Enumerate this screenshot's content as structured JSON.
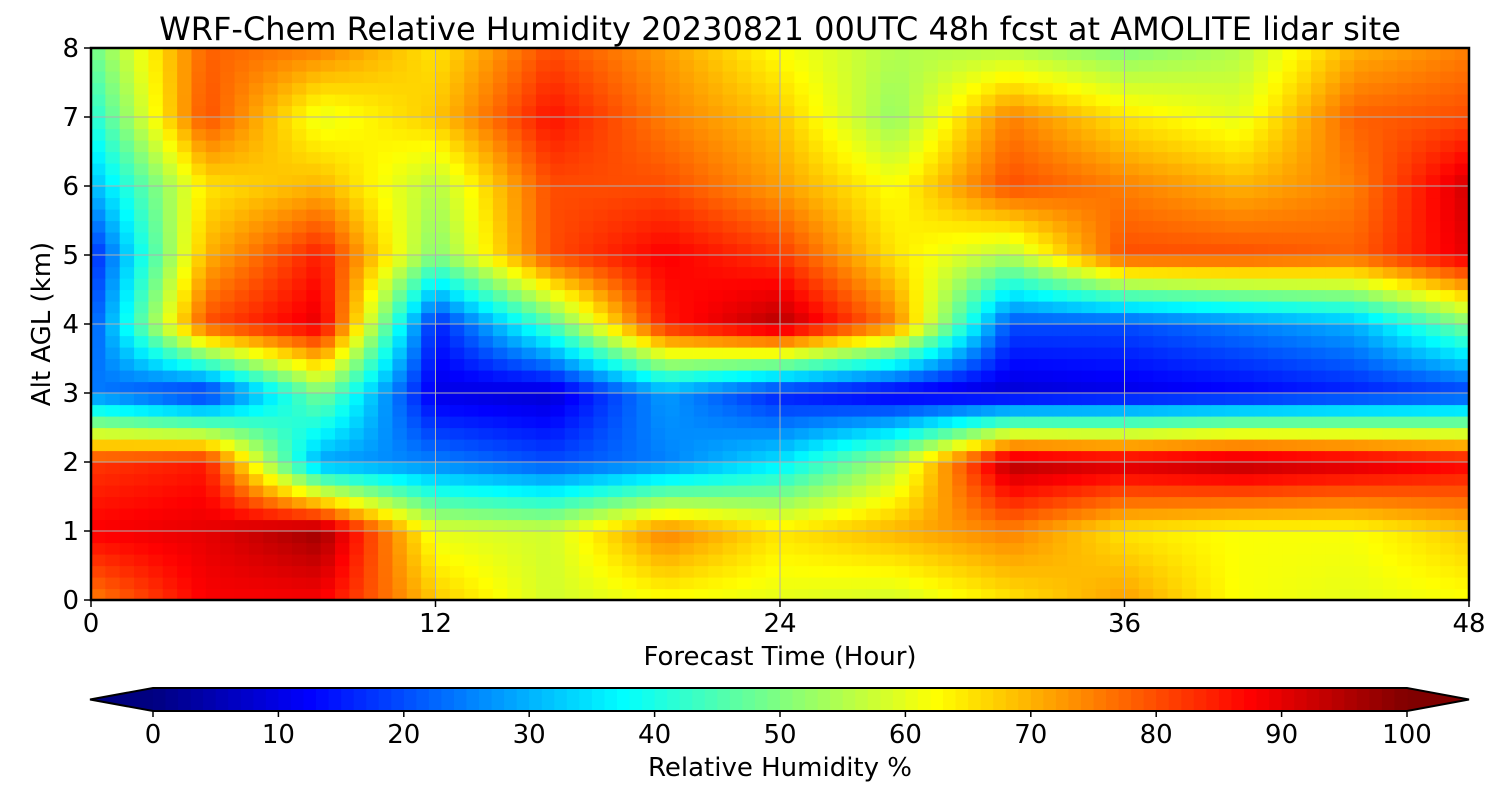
{
  "chart_data": {
    "type": "heatmap",
    "title": "WRF-Chem Relative Humidity 20230821 00UTC 48h fcst at AMOLITE lidar site",
    "xlabel": "Forecast Time (Hour)",
    "ylabel": "Alt AGL (km)",
    "xlim": [
      0,
      48
    ],
    "ylim": [
      0,
      8
    ],
    "x_ticks": [
      0,
      12,
      24,
      36,
      48
    ],
    "y_ticks": [
      0,
      1,
      2,
      3,
      4,
      5,
      6,
      7,
      8
    ],
    "x_tick_labels": [
      "0",
      "12",
      "24",
      "36",
      "48"
    ],
    "y_tick_labels": [
      "0",
      "1",
      "2",
      "3",
      "4",
      "5",
      "6",
      "7",
      "8"
    ],
    "grid": true,
    "colormap": "jet",
    "colorbar": {
      "label": "Relative Humidity %",
      "orientation": "horizontal",
      "position": "bottom",
      "vmin": 0,
      "vmax": 100,
      "ticks": [
        0,
        10,
        20,
        30,
        40,
        50,
        60,
        70,
        80,
        90,
        100
      ],
      "tick_labels": [
        "0",
        "10",
        "20",
        "30",
        "40",
        "50",
        "60",
        "70",
        "80",
        "90",
        "100"
      ],
      "extend": "both"
    },
    "x": [
      0,
      4,
      8,
      12,
      16,
      20,
      24,
      28,
      32,
      36,
      40,
      44,
      48
    ],
    "y": [
      0,
      1,
      2,
      3,
      4,
      5,
      6,
      7,
      8
    ],
    "z": [
      [
        75,
        88,
        88,
        68,
        58,
        62,
        60,
        58,
        65,
        72,
        62,
        60,
        62
      ],
      [
        88,
        90,
        97,
        60,
        58,
        75,
        65,
        70,
        75,
        65,
        62,
        62,
        68
      ],
      [
        82,
        85,
        28,
        25,
        20,
        25,
        35,
        55,
        95,
        92,
        95,
        92,
        88
      ],
      [
        25,
        15,
        50,
        10,
        8,
        28,
        15,
        10,
        8,
        10,
        12,
        15,
        18
      ],
      [
        20,
        80,
        90,
        15,
        45,
        85,
        95,
        75,
        20,
        20,
        25,
        30,
        50
      ],
      [
        15,
        70,
        85,
        50,
        80,
        88,
        82,
        65,
        55,
        80,
        80,
        78,
        90
      ],
      [
        30,
        65,
        70,
        55,
        80,
        80,
        72,
        62,
        80,
        75,
        70,
        75,
        92
      ],
      [
        40,
        80,
        60,
        68,
        86,
        75,
        68,
        52,
        75,
        65,
        60,
        78,
        80
      ],
      [
        48,
        78,
        75,
        65,
        80,
        72,
        62,
        55,
        55,
        50,
        55,
        70,
        75
      ]
    ]
  }
}
